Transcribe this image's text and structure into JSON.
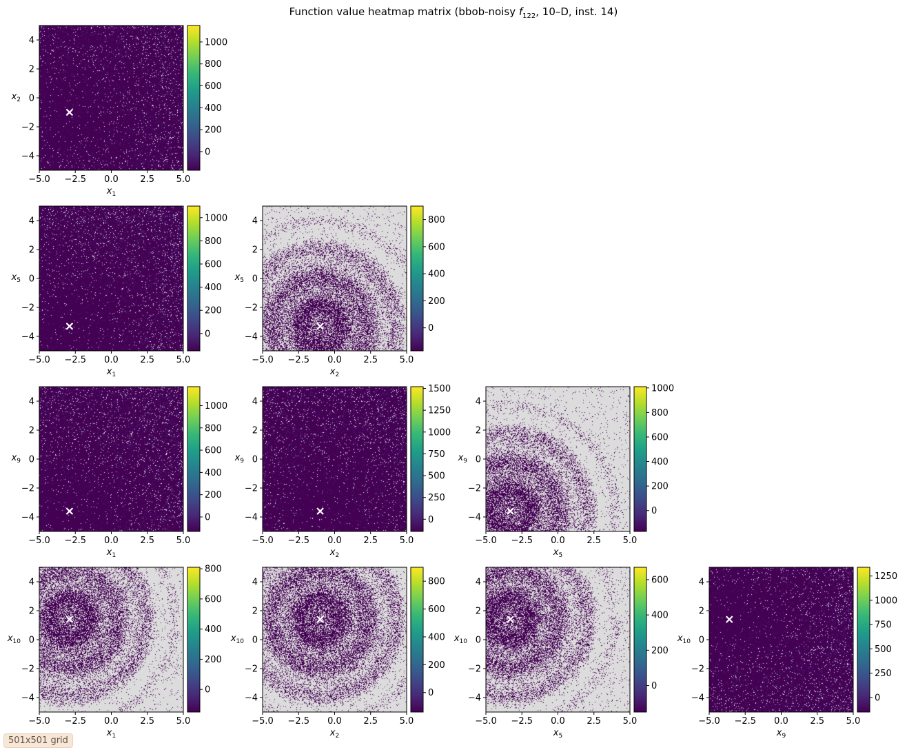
{
  "title": {
    "prefix": "Function value heatmap matrix (bbob-noisy ",
    "func": "f",
    "func_sub": "122",
    "suffix": ", 10–D, inst. 14)"
  },
  "badge": "501x501 grid",
  "colors": {
    "viridis": [
      "#440154",
      "#482878",
      "#3e4a89",
      "#31688e",
      "#26828e",
      "#1f9e89",
      "#35b779",
      "#6ece58",
      "#b5de2b",
      "#fde725"
    ],
    "background_masked": "#dcdcdc",
    "marker": "#ffffff"
  },
  "chart_data": [
    {
      "type": "heatmap",
      "x_var": "x",
      "x_sub": "1",
      "y_var": "x",
      "y_sub": "2",
      "xlim": [
        -5,
        5
      ],
      "ylim": [
        -5,
        5
      ],
      "x_ticks": [
        "−5.0",
        "−2.5",
        "0.0",
        "2.5",
        "5.0"
      ],
      "y_ticks": [
        "−4",
        "−2",
        "0",
        "2",
        "4"
      ],
      "optimum": [
        -2.9,
        -1.0
      ],
      "colorbar": {
        "vmin": -170,
        "vmax": 1150,
        "ticks": [
          0,
          200,
          400,
          600,
          800,
          1000
        ]
      },
      "pattern": "dense"
    },
    {
      "type": "heatmap",
      "x_var": "x",
      "x_sub": "1",
      "y_var": "x",
      "y_sub": "5",
      "xlim": [
        -5,
        5
      ],
      "ylim": [
        -5,
        5
      ],
      "x_ticks": [
        "−5.0",
        "−2.5",
        "0.0",
        "2.5",
        "5.0"
      ],
      "y_ticks": [
        "−4",
        "−2",
        "0",
        "2",
        "4"
      ],
      "optimum": [
        -2.9,
        -3.3
      ],
      "colorbar": {
        "vmin": -150,
        "vmax": 1100,
        "ticks": [
          0,
          200,
          400,
          600,
          800,
          1000
        ]
      },
      "pattern": "dense"
    },
    {
      "type": "heatmap",
      "x_var": "x",
      "x_sub": "2",
      "y_var": "x",
      "y_sub": "5",
      "xlim": [
        -5,
        5
      ],
      "ylim": [
        -5,
        5
      ],
      "x_ticks": [
        "−5.0",
        "−2.5",
        "0.0",
        "2.5",
        "5.0"
      ],
      "y_ticks": [
        "−4",
        "−2",
        "0",
        "2",
        "4"
      ],
      "optimum": [
        -1.0,
        -3.3
      ],
      "colorbar": {
        "vmin": -170,
        "vmax": 900,
        "ticks": [
          0,
          200,
          400,
          600,
          800
        ]
      },
      "pattern": "sparse"
    },
    {
      "type": "heatmap",
      "x_var": "x",
      "x_sub": "1",
      "y_var": "x",
      "y_sub": "9",
      "xlim": [
        -5,
        5
      ],
      "ylim": [
        -5,
        5
      ],
      "x_ticks": [
        "−5.0",
        "−2.5",
        "0.0",
        "2.5",
        "5.0"
      ],
      "y_ticks": [
        "−4",
        "−2",
        "0",
        "2",
        "4"
      ],
      "optimum": [
        -2.9,
        -3.6
      ],
      "colorbar": {
        "vmin": -130,
        "vmax": 1170,
        "ticks": [
          0,
          200,
          400,
          600,
          800,
          1000
        ]
      },
      "pattern": "dense"
    },
    {
      "type": "heatmap",
      "x_var": "x",
      "x_sub": "2",
      "y_var": "x",
      "y_sub": "9",
      "xlim": [
        -5,
        5
      ],
      "ylim": [
        -5,
        5
      ],
      "x_ticks": [
        "−5.0",
        "−2.5",
        "0.0",
        "2.5",
        "5.0"
      ],
      "y_ticks": [
        "−4",
        "−2",
        "0",
        "2",
        "4"
      ],
      "optimum": [
        -1.0,
        -3.6
      ],
      "colorbar": {
        "vmin": -140,
        "vmax": 1520,
        "ticks": [
          0,
          250,
          500,
          750,
          1000,
          1250,
          1500
        ]
      },
      "pattern": "dense"
    },
    {
      "type": "heatmap",
      "x_var": "x",
      "x_sub": "5",
      "y_var": "x",
      "y_sub": "9",
      "xlim": [
        -5,
        5
      ],
      "ylim": [
        -5,
        5
      ],
      "x_ticks": [
        "−5.0",
        "−2.5",
        "0.0",
        "2.5",
        "5.0"
      ],
      "y_ticks": [
        "−4",
        "−2",
        "0",
        "2",
        "4"
      ],
      "optimum": [
        -3.3,
        -3.6
      ],
      "colorbar": {
        "vmin": -170,
        "vmax": 1010,
        "ticks": [
          0,
          200,
          400,
          600,
          800,
          1000
        ]
      },
      "pattern": "sparse"
    },
    {
      "type": "heatmap",
      "x_var": "x",
      "x_sub": "1",
      "y_var": "x",
      "y_sub": "10",
      "xlim": [
        -5,
        5
      ],
      "ylim": [
        -5,
        5
      ],
      "x_ticks": [
        "−5.0",
        "−2.5",
        "0.0",
        "2.5",
        "5.0"
      ],
      "y_ticks": [
        "−4",
        "−2",
        "0",
        "2",
        "4"
      ],
      "optimum": [
        -2.9,
        1.4
      ],
      "colorbar": {
        "vmin": -150,
        "vmax": 810,
        "ticks": [
          0,
          200,
          400,
          600,
          800
        ]
      },
      "pattern": "sparse"
    },
    {
      "type": "heatmap",
      "x_var": "x",
      "x_sub": "2",
      "y_var": "x",
      "y_sub": "10",
      "xlim": [
        -5,
        5
      ],
      "ylim": [
        -5,
        5
      ],
      "x_ticks": [
        "−5.0",
        "−2.5",
        "0.0",
        "2.5",
        "5.0"
      ],
      "y_ticks": [
        "−4",
        "−2",
        "0",
        "2",
        "4"
      ],
      "optimum": [
        -1.0,
        1.4
      ],
      "colorbar": {
        "vmin": -140,
        "vmax": 900,
        "ticks": [
          0,
          200,
          400,
          600,
          800
        ]
      },
      "pattern": "sparse"
    },
    {
      "type": "heatmap",
      "x_var": "x",
      "x_sub": "5",
      "y_var": "x",
      "y_sub": "10",
      "xlim": [
        -5,
        5
      ],
      "ylim": [
        -5,
        5
      ],
      "x_ticks": [
        "−5.0",
        "−2.5",
        "0.0",
        "2.5",
        "5.0"
      ],
      "y_ticks": [
        "−4",
        "−2",
        "0",
        "2",
        "4"
      ],
      "optimum": [
        -3.3,
        1.4
      ],
      "colorbar": {
        "vmin": -150,
        "vmax": 670,
        "ticks": [
          0,
          200,
          400,
          600
        ]
      },
      "pattern": "sparse"
    },
    {
      "type": "heatmap",
      "x_var": "x",
      "x_sub": "9",
      "y_var": "x",
      "y_sub": "10",
      "xlim": [
        -5,
        5
      ],
      "ylim": [
        -5,
        5
      ],
      "x_ticks": [
        "−5.0",
        "−2.5",
        "0.0",
        "2.5",
        "5.0"
      ],
      "y_ticks": [
        "−4",
        "−2",
        "0",
        "2",
        "4"
      ],
      "optimum": [
        -3.6,
        1.4
      ],
      "colorbar": {
        "vmin": -150,
        "vmax": 1340,
        "ticks": [
          0,
          250,
          500,
          750,
          1000,
          1250
        ]
      },
      "pattern": "dense"
    }
  ]
}
